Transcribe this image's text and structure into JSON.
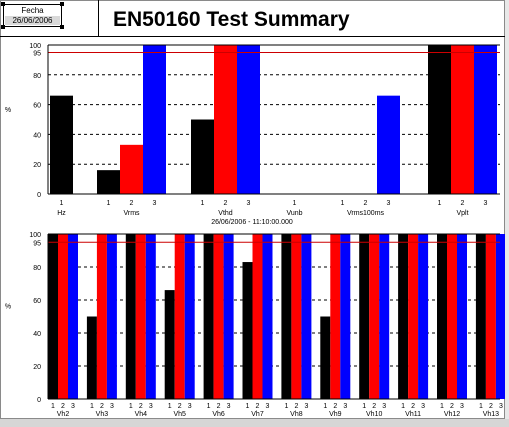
{
  "header": {
    "date_label": "Fecha",
    "date_value": "26/06/2006",
    "title": "EN50160 Test Summary"
  },
  "chart_data": [
    {
      "type": "bar",
      "ylabel": "%",
      "ylim": [
        0,
        100
      ],
      "yticks": [
        0,
        20,
        40,
        60,
        80,
        95,
        100
      ],
      "grid": "dashed horizontal",
      "threshold_line": 95,
      "series_colors": [
        "#000000",
        "#ff0000",
        "#0000ff"
      ],
      "groups": [
        {
          "name": "Hz",
          "phases": [
            "1"
          ],
          "values": [
            66
          ]
        },
        {
          "name": "Vrms",
          "phases": [
            "1",
            "2",
            "3"
          ],
          "values": [
            16,
            33,
            100
          ]
        },
        {
          "name": "Vthd",
          "phases": [
            "1",
            "2",
            "3"
          ],
          "values": [
            50,
            100,
            100
          ]
        },
        {
          "name": "Vunb",
          "phases": [
            "1"
          ],
          "values": [
            0
          ]
        },
        {
          "name": "Vrms100ms",
          "phases": [
            "1",
            "2",
            "3"
          ],
          "values": [
            0,
            0,
            66
          ]
        },
        {
          "name": "Vplt",
          "phases": [
            "1",
            "2",
            "3"
          ],
          "values": [
            100,
            100,
            100
          ]
        }
      ],
      "footer": "26/06/2006 - 11:10:00.000"
    },
    {
      "type": "bar",
      "ylabel": "%",
      "ylim": [
        0,
        100
      ],
      "yticks": [
        0,
        20,
        40,
        60,
        80,
        95,
        100
      ],
      "grid": "dashed horizontal",
      "threshold_line": 95,
      "series_colors": [
        "#000000",
        "#ff0000",
        "#0000ff"
      ],
      "phase_labels": [
        "1",
        "2",
        "3"
      ],
      "groups": [
        {
          "name": "Vh2",
          "values": [
            100,
            100,
            100
          ]
        },
        {
          "name": "Vh3",
          "values": [
            50,
            100,
            100
          ]
        },
        {
          "name": "Vh4",
          "values": [
            100,
            100,
            100
          ]
        },
        {
          "name": "Vh5",
          "values": [
            66,
            100,
            100
          ]
        },
        {
          "name": "Vh6",
          "values": [
            100,
            100,
            100
          ]
        },
        {
          "name": "Vh7",
          "values": [
            83,
            100,
            100
          ]
        },
        {
          "name": "Vh8",
          "values": [
            100,
            100,
            100
          ]
        },
        {
          "name": "Vh9",
          "values": [
            50,
            100,
            100
          ]
        },
        {
          "name": "Vh10",
          "values": [
            100,
            100,
            100
          ]
        },
        {
          "name": "Vh11",
          "values": [
            100,
            100,
            100
          ]
        },
        {
          "name": "Vh12",
          "values": [
            100,
            100,
            100
          ]
        },
        {
          "name": "Vh13",
          "values": [
            100,
            100,
            100
          ]
        }
      ]
    }
  ]
}
